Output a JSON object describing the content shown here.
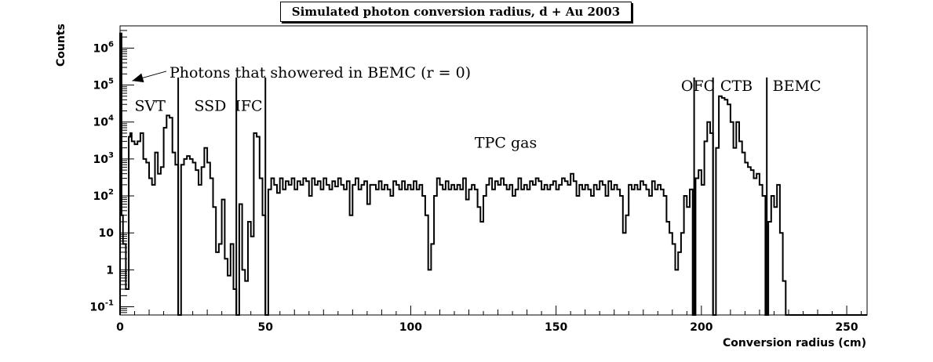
{
  "chart_data": {
    "type": "histogram",
    "title": "Simulated photon conversion radius, d + Au 2003",
    "xlabel": "Conversion radius (cm)",
    "ylabel": "Counts",
    "xlim": [
      0,
      257
    ],
    "ylim": [
      0.06,
      4000000
    ],
    "yscale": "log",
    "grid": false,
    "x_ticks": [
      0,
      50,
      100,
      150,
      200,
      250
    ],
    "y_ticks": [
      {
        "value": 0.1,
        "label": "10",
        "exp": "-1"
      },
      {
        "value": 1,
        "label": "1",
        "exp": ""
      },
      {
        "value": 10,
        "label": "10",
        "exp": ""
      },
      {
        "value": 100,
        "label": "10",
        "exp": "2"
      },
      {
        "value": 1000,
        "label": "10",
        "exp": "3"
      },
      {
        "value": 10000,
        "label": "10",
        "exp": "4"
      },
      {
        "value": 100000,
        "label": "10",
        "exp": "5"
      },
      {
        "value": 1000000,
        "label": "10",
        "exp": "6"
      }
    ],
    "detector_boundaries": [
      20,
      40,
      50,
      197.5,
      204,
      222.5
    ],
    "annotations": [
      {
        "text": "Photons that showered in BEMC (r = 0)",
        "x": 17,
        "y": 160000,
        "arrow_to": [
          2,
          130000
        ]
      },
      {
        "text": "SVT",
        "x": 5,
        "y": 20000
      },
      {
        "text": "SSD",
        "x": 25.5,
        "y": 20000
      },
      {
        "text": "IFC",
        "x": 39.5,
        "y": 20000
      },
      {
        "text": "TPC gas",
        "x": 122,
        "y": 2000
      },
      {
        "text": "OFC",
        "x": 193,
        "y": 70000
      },
      {
        "text": "CTB",
        "x": 206.5,
        "y": 70000
      },
      {
        "text": "BEMC",
        "x": 224.5,
        "y": 70000
      }
    ],
    "series": [
      {
        "points": [
          [
            0,
            2500000
          ],
          [
            0.5,
            30
          ],
          [
            1,
            5
          ],
          [
            2,
            0.3
          ],
          [
            3,
            4000
          ],
          [
            3.5,
            5000
          ],
          [
            4,
            3000
          ],
          [
            5,
            2500
          ],
          [
            6,
            3000
          ],
          [
            7,
            5000
          ],
          [
            8,
            1000
          ],
          [
            9,
            800
          ],
          [
            10,
            300
          ],
          [
            11,
            200
          ],
          [
            12,
            1500
          ],
          [
            13,
            400
          ],
          [
            14,
            600
          ],
          [
            15,
            7000
          ],
          [
            16,
            15000
          ],
          [
            17,
            13000
          ],
          [
            18,
            1500
          ],
          [
            19,
            700
          ],
          [
            20,
            0.05
          ],
          [
            21,
            700
          ],
          [
            22,
            1000
          ],
          [
            23,
            1200
          ],
          [
            24,
            1000
          ],
          [
            25,
            800
          ],
          [
            26,
            500
          ],
          [
            27,
            200
          ],
          [
            28,
            600
          ],
          [
            29,
            2000
          ],
          [
            30,
            800
          ],
          [
            31,
            300
          ],
          [
            32,
            50
          ],
          [
            33,
            3
          ],
          [
            34,
            5
          ],
          [
            35,
            80
          ],
          [
            36,
            2
          ],
          [
            37,
            0.7
          ],
          [
            38,
            5
          ],
          [
            39,
            0.3
          ],
          [
            40,
            0.05
          ],
          [
            41,
            60
          ],
          [
            42,
            1
          ],
          [
            43,
            0.5
          ],
          [
            44,
            20
          ],
          [
            45,
            8
          ],
          [
            46,
            5000
          ],
          [
            47,
            4000
          ],
          [
            48,
            300
          ],
          [
            49,
            30
          ],
          [
            50,
            0.05
          ],
          [
            51,
            150
          ],
          [
            52,
            300
          ],
          [
            53,
            200
          ],
          [
            54,
            120
          ],
          [
            55,
            300
          ],
          [
            56,
            150
          ],
          [
            57,
            250
          ],
          [
            58,
            200
          ],
          [
            59,
            300
          ],
          [
            60,
            150
          ],
          [
            61,
            250
          ],
          [
            62,
            200
          ],
          [
            63,
            300
          ],
          [
            64,
            250
          ],
          [
            65,
            100
          ],
          [
            66,
            300
          ],
          [
            67,
            200
          ],
          [
            68,
            250
          ],
          [
            69,
            150
          ],
          [
            70,
            300
          ],
          [
            71,
            200
          ],
          [
            72,
            150
          ],
          [
            73,
            250
          ],
          [
            74,
            180
          ],
          [
            75,
            300
          ],
          [
            76,
            200
          ],
          [
            77,
            150
          ],
          [
            78,
            250
          ],
          [
            79,
            30
          ],
          [
            80,
            200
          ],
          [
            81,
            300
          ],
          [
            82,
            150
          ],
          [
            83,
            200
          ],
          [
            84,
            250
          ],
          [
            85,
            60
          ],
          [
            86,
            200
          ],
          [
            87,
            200
          ],
          [
            88,
            150
          ],
          [
            89,
            250
          ],
          [
            90,
            150
          ],
          [
            91,
            200
          ],
          [
            92,
            150
          ],
          [
            93,
            100
          ],
          [
            94,
            250
          ],
          [
            95,
            200
          ],
          [
            96,
            150
          ],
          [
            97,
            250
          ],
          [
            98,
            150
          ],
          [
            99,
            200
          ],
          [
            100,
            150
          ],
          [
            101,
            250
          ],
          [
            102,
            150
          ],
          [
            103,
            200
          ],
          [
            104,
            100
          ],
          [
            105,
            30
          ],
          [
            106,
            1
          ],
          [
            107,
            5
          ],
          [
            108,
            100
          ],
          [
            109,
            300
          ],
          [
            110,
            200
          ],
          [
            111,
            150
          ],
          [
            112,
            250
          ],
          [
            113,
            150
          ],
          [
            114,
            200
          ],
          [
            115,
            150
          ],
          [
            116,
            200
          ],
          [
            117,
            150
          ],
          [
            118,
            300
          ],
          [
            119,
            80
          ],
          [
            120,
            150
          ],
          [
            121,
            200
          ],
          [
            122,
            150
          ],
          [
            123,
            50
          ],
          [
            124,
            20
          ],
          [
            125,
            100
          ],
          [
            126,
            200
          ],
          [
            127,
            300
          ],
          [
            128,
            150
          ],
          [
            129,
            250
          ],
          [
            130,
            200
          ],
          [
            131,
            300
          ],
          [
            132,
            200
          ],
          [
            133,
            150
          ],
          [
            134,
            200
          ],
          [
            135,
            100
          ],
          [
            136,
            150
          ],
          [
            137,
            300
          ],
          [
            138,
            150
          ],
          [
            139,
            200
          ],
          [
            140,
            150
          ],
          [
            141,
            250
          ],
          [
            142,
            200
          ],
          [
            143,
            300
          ],
          [
            144,
            250
          ],
          [
            145,
            150
          ],
          [
            146,
            200
          ],
          [
            147,
            150
          ],
          [
            148,
            200
          ],
          [
            149,
            250
          ],
          [
            150,
            150
          ],
          [
            151,
            200
          ],
          [
            152,
            300
          ],
          [
            153,
            250
          ],
          [
            154,
            200
          ],
          [
            155,
            400
          ],
          [
            156,
            250
          ],
          [
            157,
            100
          ],
          [
            158,
            200
          ],
          [
            159,
            150
          ],
          [
            160,
            200
          ],
          [
            161,
            150
          ],
          [
            162,
            100
          ],
          [
            163,
            200
          ],
          [
            164,
            150
          ],
          [
            165,
            250
          ],
          [
            166,
            200
          ],
          [
            167,
            100
          ],
          [
            168,
            250
          ],
          [
            169,
            150
          ],
          [
            170,
            200
          ],
          [
            171,
            150
          ],
          [
            172,
            100
          ],
          [
            173,
            10
          ],
          [
            174,
            30
          ],
          [
            175,
            200
          ],
          [
            176,
            150
          ],
          [
            177,
            200
          ],
          [
            178,
            150
          ],
          [
            179,
            250
          ],
          [
            180,
            200
          ],
          [
            181,
            150
          ],
          [
            182,
            100
          ],
          [
            183,
            250
          ],
          [
            184,
            150
          ],
          [
            185,
            200
          ],
          [
            186,
            150
          ],
          [
            187,
            100
          ],
          [
            188,
            20
          ],
          [
            189,
            10
          ],
          [
            190,
            5
          ],
          [
            191,
            1
          ],
          [
            192,
            3
          ],
          [
            193,
            10
          ],
          [
            194,
            100
          ],
          [
            195,
            50
          ],
          [
            196,
            150
          ],
          [
            197,
            0.05
          ],
          [
            198,
            300
          ],
          [
            199,
            500
          ],
          [
            200,
            200
          ],
          [
            201,
            3000
          ],
          [
            202,
            10000
          ],
          [
            203,
            5000
          ],
          [
            204,
            0.05
          ],
          [
            205,
            2000
          ],
          [
            206,
            50000
          ],
          [
            207,
            45000
          ],
          [
            208,
            40000
          ],
          [
            209,
            30000
          ],
          [
            210,
            10000
          ],
          [
            211,
            2000
          ],
          [
            212,
            10000
          ],
          [
            213,
            3000
          ],
          [
            214,
            1500
          ],
          [
            215,
            800
          ],
          [
            216,
            600
          ],
          [
            217,
            500
          ],
          [
            218,
            300
          ],
          [
            219,
            400
          ],
          [
            220,
            200
          ],
          [
            221,
            100
          ],
          [
            222,
            0.05
          ],
          [
            223,
            20
          ],
          [
            224,
            100
          ],
          [
            225,
            50
          ],
          [
            226,
            200
          ],
          [
            227,
            10
          ],
          [
            228,
            0.5
          ],
          [
            229,
            0.05
          ],
          [
            257,
            0.05
          ]
        ]
      }
    ]
  }
}
